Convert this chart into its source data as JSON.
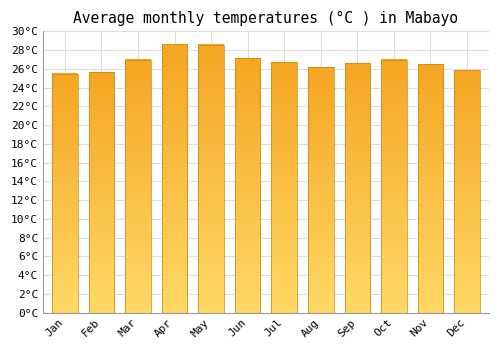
{
  "title": "Average monthly temperatures (°C ) in Mabayo",
  "months": [
    "Jan",
    "Feb",
    "Mar",
    "Apr",
    "May",
    "Jun",
    "Jul",
    "Aug",
    "Sep",
    "Oct",
    "Nov",
    "Dec"
  ],
  "values": [
    25.5,
    25.7,
    27.0,
    28.7,
    28.6,
    27.2,
    26.7,
    26.2,
    26.6,
    27.0,
    26.5,
    25.9
  ],
  "bar_color_top": "#F5A623",
  "bar_color_bottom": "#FFD966",
  "bar_edge_color": "#C8850A",
  "ylim": [
    0,
    30
  ],
  "ytick_step": 2,
  "background_color": "#ffffff",
  "grid_color": "#dddddd",
  "title_fontsize": 10.5,
  "tick_fontsize": 8,
  "font_family": "monospace",
  "bar_width": 0.7
}
